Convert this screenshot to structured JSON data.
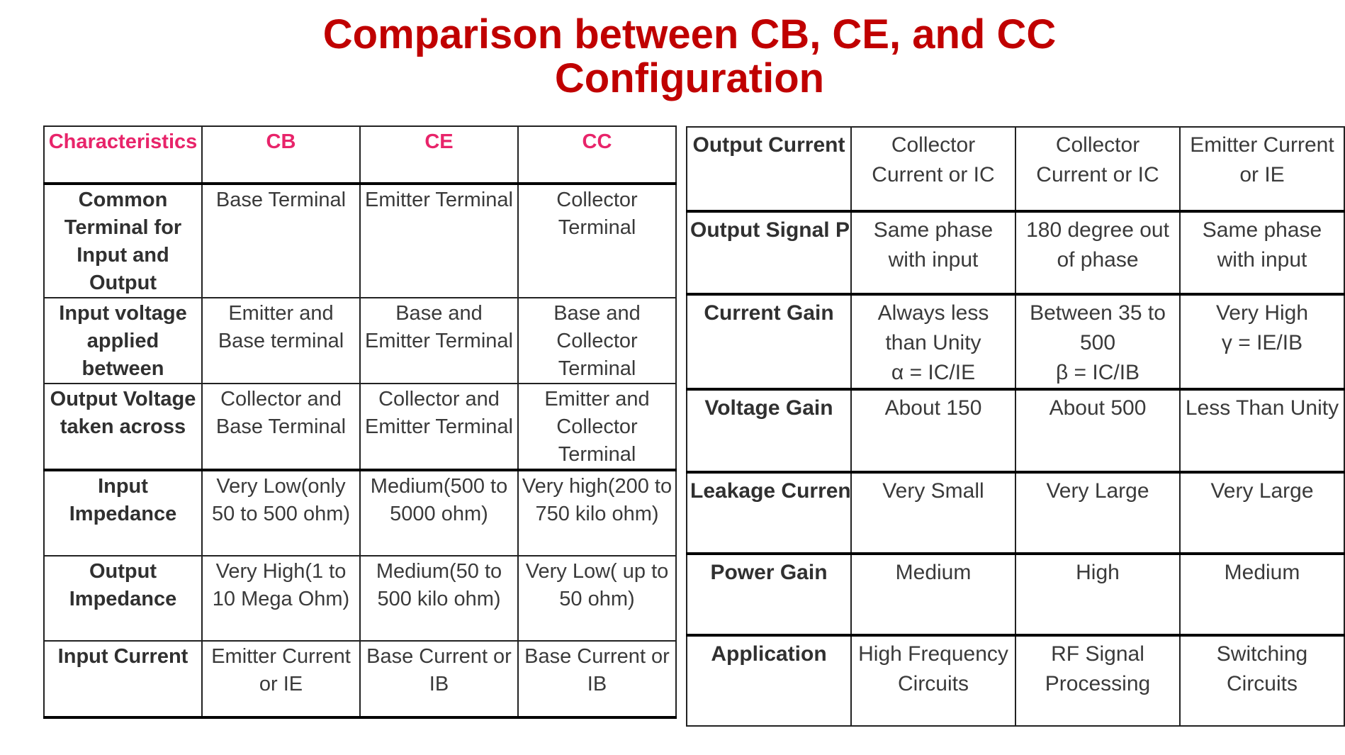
{
  "title": {
    "line1": "Comparison between CB, CE, and CC",
    "line2": "Configuration"
  },
  "left_table": {
    "header": [
      "Characteristics",
      "CB",
      "CE",
      "CC"
    ],
    "rows": [
      {
        "label": "Common Terminal for Input and Output",
        "cb": "Base Terminal",
        "ce": "Emitter Terminal",
        "cc": "Collector Terminal"
      },
      {
        "label": "Input voltage applied between",
        "cb": "Emitter and Base terminal",
        "ce": "Base and Emitter Terminal",
        "cc": "Base and Collector Terminal"
      },
      {
        "label": "Output Voltage taken across",
        "cb": "Collector and Base Terminal",
        "ce": "Collector and Emitter Terminal",
        "cc": "Emitter and Collector Terminal"
      },
      {
        "label": "Input Impedance",
        "cb": "Very Low(only 50 to 500 ohm)",
        "ce": "Medium(500 to 5000 ohm)",
        "cc": "Very high(200 to 750 kilo ohm)"
      },
      {
        "label": "Output Impedance",
        "cb": "Very High(1 to 10 Mega Ohm)",
        "ce": "Medium(50 to 500 kilo ohm)",
        "cc": "Very Low( up to 50 ohm)"
      },
      {
        "label": "Input Current",
        "cb": "Emitter Current or IE",
        "ce": "Base Current or IB",
        "cc": "Base Current or IB"
      }
    ]
  },
  "right_table": {
    "rows": [
      {
        "label": "Output Current",
        "cb": "Collector Current or IC",
        "ce": "Collector Current or IC",
        "cc": "Emitter Current or IE"
      },
      {
        "label": "Output Signal Phase",
        "cb": "Same phase with input",
        "ce": "180 degree out of phase",
        "cc": "Same phase with input"
      },
      {
        "label": "Current Gain",
        "cb": "Always less than Unity",
        "cb_formula": "α = IC/IE",
        "ce": "Between 35 to 500",
        "ce_formula": "β = IC/IB",
        "cc": "Very High",
        "cc_formula": "γ = IE/IB"
      },
      {
        "label": "Voltage Gain",
        "cb": "About 150",
        "ce": "About 500",
        "cc": "Less Than Unity"
      },
      {
        "label": "Leakage Current",
        "cb": "Very Small",
        "ce": "Very Large",
        "cc": "Very Large"
      },
      {
        "label": "Power Gain",
        "cb": "Medium",
        "ce": "High",
        "cc": "Medium"
      },
      {
        "label": "Application",
        "cb": "High Frequency Circuits",
        "ce": "RF Signal Processing",
        "cc": "Switching Circuits"
      }
    ]
  }
}
